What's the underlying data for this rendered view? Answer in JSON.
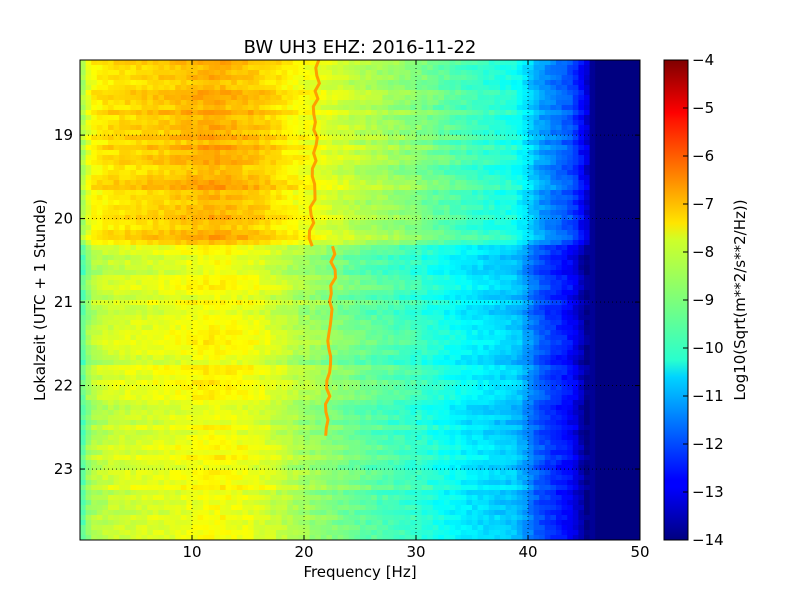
{
  "chart_data": {
    "type": "heatmap",
    "title": "BW UH3 EHZ: 2016-11-22",
    "xlabel": "Frequency [Hz]",
    "ylabel": "Lokalzeit (UTC + 1 Stunde)",
    "xlim": [
      0,
      50
    ],
    "ylim": [
      23.85,
      18.1
    ],
    "x_ticks": [
      10,
      20,
      30,
      40,
      50
    ],
    "y_ticks": [
      19,
      20,
      21,
      22,
      23
    ],
    "grid": true,
    "colormap": "jet",
    "colorbar": {
      "label": "Log10(Sqrt(m**2/s**2/Hz))",
      "min": -14,
      "max": -4,
      "ticks": [
        -4,
        -5,
        -6,
        -7,
        -8,
        -9,
        -10,
        -11,
        -12,
        -13,
        -14
      ]
    },
    "freq_profile": {
      "frequency_hz": [
        0,
        1,
        3,
        8,
        12,
        16,
        20,
        25,
        30,
        35,
        39,
        41,
        44,
        46,
        50
      ],
      "level": [
        -9,
        -7.9,
        -7.6,
        -7.4,
        -7.1,
        -7.4,
        -8.0,
        -8.6,
        -9.1,
        -9.8,
        -10.2,
        -11.3,
        -12.2,
        -14,
        -14
      ]
    },
    "spectral_line": {
      "level": -6.8,
      "segments": [
        {
          "time": [
            18.1,
            20.33
          ],
          "frequency_hz": [
            21.2,
            20.6
          ]
        },
        {
          "time": [
            20.33,
            22.6
          ],
          "frequency_hz": [
            22.7,
            22.0
          ]
        }
      ]
    },
    "level_shift": {
      "time": 20.33,
      "before": 0.2,
      "after": -0.6
    }
  }
}
